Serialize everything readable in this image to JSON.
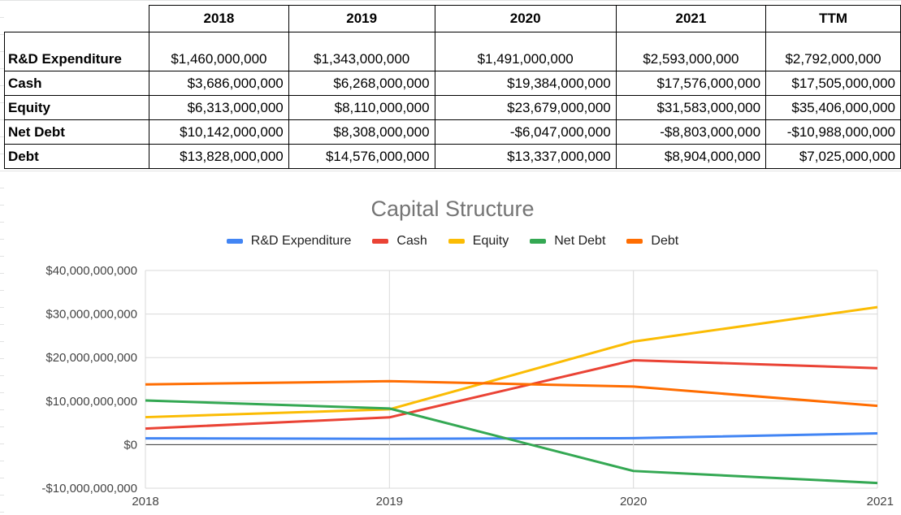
{
  "table": {
    "headers": [
      "2018",
      "2019",
      "2020",
      "2021",
      "TTM"
    ],
    "rows": [
      {
        "label": "R&D Expenditure",
        "values": [
          "$1,460,000,000",
          "$1,343,000,000",
          "$1,491,000,000",
          "$2,593,000,000",
          "$2,792,000,000"
        ]
      },
      {
        "label": "Cash",
        "values": [
          "$3,686,000,000",
          "$6,268,000,000",
          "$19,384,000,000",
          "$17,576,000,000",
          "$17,505,000,000"
        ]
      },
      {
        "label": "Equity",
        "values": [
          "$6,313,000,000",
          "$8,110,000,000",
          "$23,679,000,000",
          "$31,583,000,000",
          "$35,406,000,000"
        ]
      },
      {
        "label": "Net Debt",
        "values": [
          "$10,142,000,000",
          "$8,308,000,000",
          "-$6,047,000,000",
          "-$8,803,000,000",
          "-$10,988,000,000"
        ]
      },
      {
        "label": "Debt",
        "values": [
          "$13,828,000,000",
          "$14,576,000,000",
          "$13,337,000,000",
          "$8,904,000,000",
          "$7,025,000,000"
        ]
      }
    ]
  },
  "chart_data": {
    "type": "line",
    "title": "Capital Structure",
    "xlabel": "",
    "ylabel": "",
    "x": [
      "2018",
      "2019",
      "2020",
      "2021"
    ],
    "ylim": [
      -10000000000,
      40000000000
    ],
    "yticks": [
      40000000000,
      30000000000,
      20000000000,
      10000000000,
      0,
      -10000000000
    ],
    "ytick_labels": [
      "$40,000,000,000",
      "$30,000,000,000",
      "$20,000,000,000",
      "$10,000,000,000",
      "$0",
      "-$10,000,000,000"
    ],
    "grid": true,
    "legend_position": "top",
    "series": [
      {
        "name": "R&D Expenditure",
        "color": "#4285f4",
        "values": [
          1460000000,
          1343000000,
          1491000000,
          2593000000
        ]
      },
      {
        "name": "Cash",
        "color": "#ea4335",
        "values": [
          3686000000,
          6268000000,
          19384000000,
          17576000000
        ]
      },
      {
        "name": "Equity",
        "color": "#fbbc04",
        "values": [
          6313000000,
          8110000000,
          23679000000,
          31583000000
        ]
      },
      {
        "name": "Net Debt",
        "color": "#34a853",
        "values": [
          10142000000,
          8308000000,
          -6047000000,
          -8803000000
        ]
      },
      {
        "name": "Debt",
        "color": "#ff6d01",
        "values": [
          13828000000,
          14576000000,
          13337000000,
          8904000000
        ]
      }
    ]
  }
}
